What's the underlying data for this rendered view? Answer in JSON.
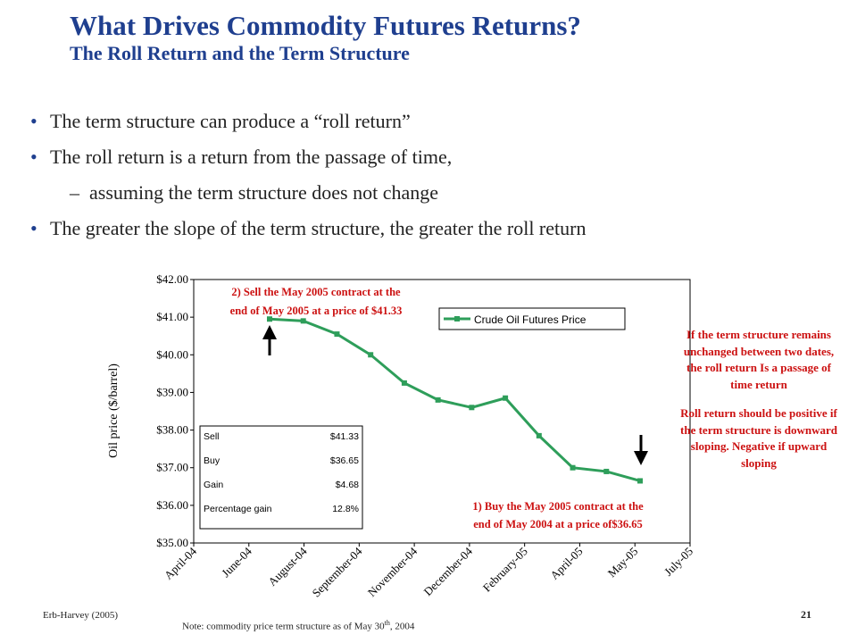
{
  "header": {
    "title": "What Drives Commodity Futures Returns?",
    "subtitle": "The Roll Return and the Term Structure"
  },
  "bullets": [
    {
      "text": "The term structure can produce a “roll return”",
      "marker": "•"
    },
    {
      "text": "The roll return is a return from the passage of time,",
      "marker": "•"
    },
    {
      "text": "assuming the term structure does not change",
      "marker": "–"
    },
    {
      "text": "The greater the slope of the term structure, the greater the roll return",
      "marker": "•"
    }
  ],
  "side_note": {
    "para1": "If the term structure remains unchanged between two dates, the roll return Is a passage of time return",
    "para2": "Roll return should be positive if the term structure is downward sloping. Negative if upward sloping"
  },
  "footer": {
    "source": "Erb-Harvey (2005)",
    "page": "21",
    "note_prefix": "Note: commodity price term structure as of May 30",
    "note_sup": "th",
    "note_suffix": ", 2004"
  },
  "chart_data": {
    "type": "line",
    "ylabel": "Oil price ($/barrel)",
    "ylim": [
      35,
      42
    ],
    "y_ticks": [
      "$35.00",
      "$36.00",
      "$37.00",
      "$38.00",
      "$39.00",
      "$40.00",
      "$41.00",
      "$42.00"
    ],
    "x_ticks": [
      "April-04",
      "June-04",
      "August-04",
      "September-04",
      "November-04",
      "December-04",
      "February-05",
      "April-05",
      "May-05",
      "July-05"
    ],
    "series": [
      {
        "name": "Crude Oil Futures Price",
        "color": "#2e9e5a",
        "values": [
          40.95,
          40.9,
          40.55,
          40.0,
          39.25,
          38.8,
          38.6,
          38.85,
          37.85,
          37.0,
          36.9,
          36.65
        ]
      }
    ],
    "annotations": {
      "sell": [
        "2) Sell the May 2005 contract at the",
        "end of May 2005 at a price of $41.33"
      ],
      "buy": [
        "1) Buy the May 2005 contract at the",
        "end of May 2004 at a price of$36.65"
      ]
    },
    "table": [
      {
        "label": "Sell",
        "value": "$41.33"
      },
      {
        "label": "Buy",
        "value": "$36.65"
      },
      {
        "label": "Gain",
        "value": "$4.68"
      },
      {
        "label": "Percentage gain",
        "value": "12.8%"
      }
    ],
    "colors": {
      "annotation": "#cc1111",
      "title": "#1f3f8f",
      "line": "#2e9e5a"
    }
  }
}
